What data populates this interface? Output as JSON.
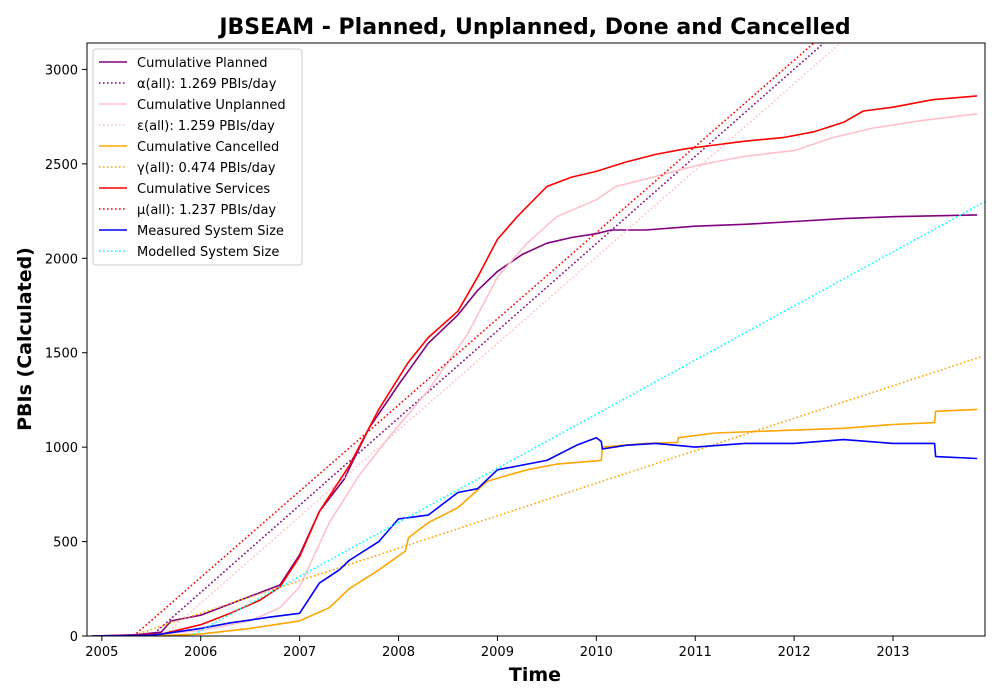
{
  "chart_data": {
    "type": "line",
    "title": "JBSEAM - Planned, Unplanned, Done  and Cancelled",
    "xlabel": "Time",
    "ylabel": "PBIs (Calculated)",
    "xlim": [
      2004.85,
      2013.93
    ],
    "ylim": [
      0,
      3140
    ],
    "x_ticks": [
      2005,
      2006,
      2007,
      2008,
      2009,
      2010,
      2011,
      2012,
      2013
    ],
    "x_tick_labels": [
      "2005",
      "2006",
      "2007",
      "2008",
      "2009",
      "2010",
      "2011",
      "2012",
      "2013"
    ],
    "y_ticks": [
      0,
      500,
      1000,
      1500,
      2000,
      2500,
      3000
    ],
    "y_tick_labels": [
      "0",
      "500",
      "1000",
      "1500",
      "2000",
      "2500",
      "3000"
    ],
    "grid": false,
    "legend_position": "top-left",
    "series": [
      {
        "name": "Cumulative Planned",
        "color": "#800080",
        "style": "solid",
        "x": [
          2004.9,
          2005.3,
          2005.6,
          2005.7,
          2006.0,
          2006.3,
          2006.6,
          2006.8,
          2007.0,
          2007.2,
          2007.45,
          2007.7,
          2008.0,
          2008.3,
          2008.6,
          2008.8,
          2009.0,
          2009.25,
          2009.5,
          2009.75,
          2010.0,
          2010.15,
          2010.5,
          2011.0,
          2011.5,
          2012.0,
          2012.5,
          2013.0,
          2013.85
        ],
        "y": [
          0,
          5,
          20,
          80,
          110,
          170,
          230,
          270,
          430,
          660,
          830,
          1100,
          1330,
          1550,
          1700,
          1830,
          1930,
          2020,
          2080,
          2110,
          2130,
          2150,
          2150,
          2170,
          2180,
          2195,
          2210,
          2220,
          2230
        ]
      },
      {
        "name": "α(all): 1.269 PBIs/day",
        "color": "#800080",
        "style": "dotted",
        "x": [
          2005.5,
          2012.3
        ],
        "y": [
          0,
          3140
        ]
      },
      {
        "name": "Cumulative Unplanned",
        "color": "#ffc0cb",
        "style": "solid",
        "x": [
          2004.9,
          2005.6,
          2006.0,
          2006.5,
          2006.8,
          2007.0,
          2007.3,
          2007.6,
          2007.9,
          2008.3,
          2008.7,
          2009.0,
          2009.3,
          2009.6,
          2010.0,
          2010.2,
          2010.5,
          2011.0,
          2011.5,
          2012.0,
          2012.4,
          2012.8,
          2013.3,
          2013.85
        ],
        "y": [
          0,
          10,
          30,
          80,
          150,
          260,
          600,
          850,
          1050,
          1300,
          1600,
          1900,
          2080,
          2220,
          2310,
          2380,
          2420,
          2490,
          2540,
          2570,
          2640,
          2690,
          2730,
          2765
        ]
      },
      {
        "name": "ε(all): 1.259 PBIs/day",
        "color": "#ffc0cb",
        "style": "dotted",
        "x": [
          2005.62,
          2012.47
        ],
        "y": [
          0,
          3140
        ]
      },
      {
        "name": "Cumulative Cancelled",
        "color": "#ffa500",
        "style": "solid",
        "x": [
          2004.9,
          2005.6,
          2006.0,
          2006.5,
          2007.0,
          2007.3,
          2007.5,
          2007.8,
          2008.07,
          2008.1,
          2008.3,
          2008.6,
          2008.9,
          2009.3,
          2009.6,
          2010.05,
          2010.06,
          2010.5,
          2010.82,
          2010.83,
          2011.2,
          2012.0,
          2012.5,
          2013.0,
          2013.42,
          2013.43,
          2013.85
        ],
        "y": [
          0,
          2,
          10,
          40,
          80,
          150,
          250,
          350,
          450,
          520,
          600,
          680,
          820,
          880,
          910,
          930,
          1000,
          1020,
          1025,
          1050,
          1075,
          1090,
          1100,
          1120,
          1130,
          1190,
          1200
        ]
      },
      {
        "name": "γ(all): 0.474 PBIs/day",
        "color": "#ffa500",
        "style": "dotted",
        "x": [
          2005.3,
          2013.9
        ],
        "y": [
          0,
          1480
        ]
      },
      {
        "name": "Cumulative Services",
        "color": "#ff0000",
        "style": "solid",
        "x": [
          2004.9,
          2005.6,
          2006.0,
          2006.3,
          2006.6,
          2006.8,
          2007.0,
          2007.2,
          2007.5,
          2007.8,
          2008.1,
          2008.3,
          2008.6,
          2008.8,
          2009.0,
          2009.2,
          2009.5,
          2009.75,
          2010.0,
          2010.3,
          2010.6,
          2010.9,
          2011.2,
          2011.5,
          2011.9,
          2012.2,
          2012.5,
          2012.7,
          2013.0,
          2013.4,
          2013.85
        ],
        "y": [
          0,
          10,
          60,
          120,
          190,
          260,
          420,
          660,
          900,
          1200,
          1450,
          1580,
          1720,
          1900,
          2100,
          2220,
          2380,
          2430,
          2460,
          2510,
          2550,
          2580,
          2600,
          2620,
          2640,
          2670,
          2720,
          2780,
          2800,
          2840,
          2860
        ]
      },
      {
        "name": "μ(all): 1.237 PBIs/day",
        "color": "#ff0000",
        "style": "dotted",
        "x": [
          2005.32,
          2012.2
        ],
        "y": [
          0,
          3140
        ]
      },
      {
        "name": "Measured System Size",
        "color": "#0000ff",
        "style": "solid",
        "x": [
          2004.9,
          2005.5,
          2005.6,
          2006.0,
          2006.3,
          2006.7,
          2007.0,
          2007.2,
          2007.4,
          2007.5,
          2007.8,
          2008.0,
          2008.3,
          2008.6,
          2008.8,
          2009.0,
          2009.5,
          2009.8,
          2010.0,
          2010.05,
          2010.06,
          2010.3,
          2010.6,
          2011.0,
          2011.5,
          2012.0,
          2012.5,
          2013.0,
          2013.42,
          2013.43,
          2013.85
        ],
        "y": [
          0,
          5,
          10,
          40,
          70,
          100,
          120,
          280,
          350,
          400,
          500,
          620,
          640,
          760,
          780,
          880,
          930,
          1010,
          1050,
          1030,
          990,
          1010,
          1020,
          1000,
          1020,
          1020,
          1040,
          1020,
          1020,
          950,
          940
        ]
      },
      {
        "name": "Modelled System Size",
        "color": "#00ffff",
        "style": "dotted",
        "x": [
          2005.9,
          2013.93
        ],
        "y": [
          0,
          2300
        ]
      }
    ]
  }
}
